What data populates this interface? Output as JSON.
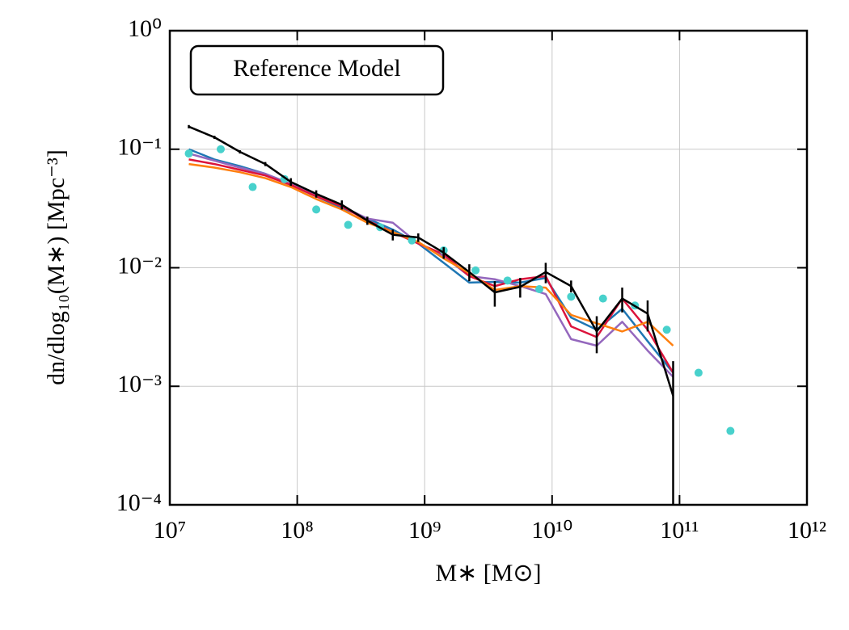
{
  "chart_data": {
    "type": "line",
    "xlabel": "M∗ [M⊙]",
    "ylabel": "dn/dlog₁₀(M∗) [Mpc⁻³]",
    "annotation": "Reference Model",
    "xlog": true,
    "ylog": true,
    "grid": true,
    "xlim": [
      10000000.0,
      1000000000000.0
    ],
    "ylim": [
      0.0001,
      1
    ],
    "xticks": [
      {
        "value": 10000000.0,
        "label": "10⁷"
      },
      {
        "value": 100000000.0,
        "label": "10⁸"
      },
      {
        "value": 1000000000.0,
        "label": "10⁹"
      },
      {
        "value": 10000000000.0,
        "label": "10¹⁰"
      },
      {
        "value": 100000000000.0,
        "label": "10¹¹"
      },
      {
        "value": 1000000000000.0,
        "label": "10¹²"
      }
    ],
    "yticks": [
      {
        "value": 0.0001,
        "label": "10⁻⁴"
      },
      {
        "value": 0.001,
        "label": "10⁻³"
      },
      {
        "value": 0.01,
        "label": "10⁻²"
      },
      {
        "value": 0.1,
        "label": "10⁻¹"
      },
      {
        "value": 1,
        "label": "10⁰"
      }
    ],
    "series": [
      {
        "mode": "line",
        "color": "#1f77b4",
        "x": [
          14100000.0,
          22400000.0,
          35500000.0,
          56200000.0,
          89100000.0,
          141000000.0,
          224000000.0,
          355000000.0,
          562000000.0,
          891000000.0,
          1410000000.0,
          2240000000.0,
          3550000000.0,
          5620000000.0,
          8910000000.0,
          14100000000.0,
          22400000000.0,
          35500000000.0,
          56200000000.0,
          89100000000.0
        ],
        "values": [
          0.1,
          0.082,
          0.072,
          0.062,
          0.05,
          0.04,
          0.032,
          0.026,
          0.021,
          0.016,
          0.011,
          0.0075,
          0.0076,
          0.0075,
          0.0082,
          0.0038,
          0.003,
          0.0045,
          0.0024,
          0.0013
        ]
      },
      {
        "mode": "line",
        "color": "#9467bd",
        "x": [
          14100000.0,
          22400000.0,
          35500000.0,
          56200000.0,
          89100000.0,
          141000000.0,
          224000000.0,
          355000000.0,
          562000000.0,
          891000000.0,
          1410000000.0,
          2240000000.0,
          3550000000.0,
          5620000000.0,
          8910000000.0,
          14100000000.0,
          22400000000.0,
          35500000000.0,
          56200000000.0,
          89100000000.0
        ],
        "values": [
          0.092,
          0.08,
          0.07,
          0.062,
          0.051,
          0.041,
          0.033,
          0.026,
          0.024,
          0.016,
          0.0125,
          0.0085,
          0.008,
          0.007,
          0.006,
          0.0025,
          0.0022,
          0.0035,
          0.002,
          0.0012
        ]
      },
      {
        "mode": "line",
        "color": "#dc143c",
        "x": [
          14100000.0,
          22400000.0,
          35500000.0,
          56200000.0,
          89100000.0,
          141000000.0,
          224000000.0,
          355000000.0,
          562000000.0,
          891000000.0,
          1410000000.0,
          2240000000.0,
          3550000000.0,
          5620000000.0,
          8910000000.0,
          14100000000.0,
          22400000000.0,
          35500000000.0,
          56200000000.0,
          89100000000.0
        ],
        "values": [
          0.082,
          0.075,
          0.067,
          0.06,
          0.05,
          0.04,
          0.033,
          0.025,
          0.02,
          0.016,
          0.013,
          0.0085,
          0.007,
          0.008,
          0.0085,
          0.0032,
          0.0026,
          0.0055,
          0.003,
          0.0013
        ]
      },
      {
        "mode": "line",
        "color": "#ff7f0e",
        "x": [
          14100000.0,
          22400000.0,
          35500000.0,
          56200000.0,
          89100000.0,
          141000000.0,
          224000000.0,
          355000000.0,
          562000000.0,
          891000000.0,
          1410000000.0,
          2240000000.0,
          3550000000.0,
          5620000000.0,
          8910000000.0,
          14100000000.0,
          22400000000.0,
          35500000000.0,
          56200000000.0,
          89100000000.0
        ],
        "values": [
          0.075,
          0.07,
          0.064,
          0.057,
          0.048,
          0.038,
          0.031,
          0.024,
          0.02,
          0.0165,
          0.012,
          0.009,
          0.0065,
          0.007,
          0.0068,
          0.004,
          0.0034,
          0.0029,
          0.0035,
          0.0022
        ]
      },
      {
        "mode": "markers",
        "color": "#48d1cc",
        "x": [
          14100000.0,
          25100000.0,
          44700000.0,
          79400000.0,
          141000000.0,
          251000000.0,
          447000000.0,
          794000000.0,
          1410000000.0,
          2510000000.0,
          4470000000.0,
          7940000000.0,
          14100000000.0,
          25100000000.0,
          44700000000.0,
          79400000000.0,
          141000000000.0,
          251000000000.0
        ],
        "values": [
          0.092,
          0.1,
          0.048,
          0.056,
          0.031,
          0.023,
          0.022,
          0.017,
          0.014,
          0.0095,
          0.0078,
          0.0066,
          0.0057,
          0.0055,
          0.0048,
          0.003,
          0.0013,
          0.00042
        ]
      },
      {
        "mode": "line",
        "color": "#000000",
        "x": [
          14100000.0,
          22400000.0,
          35500000.0,
          56200000.0,
          89100000.0,
          141000000.0,
          224000000.0,
          355000000.0,
          562000000.0,
          891000000.0,
          1410000000.0,
          2240000000.0,
          3550000000.0,
          5620000000.0,
          8910000000.0,
          14100000000.0,
          22400000000.0,
          35500000000.0,
          56200000000.0,
          89100000000.0
        ],
        "values": [
          0.155,
          0.126,
          0.095,
          0.075,
          0.053,
          0.042,
          0.034,
          0.025,
          0.019,
          0.018,
          0.0134,
          0.0092,
          0.0062,
          0.0069,
          0.0092,
          0.007,
          0.0029,
          0.0055,
          0.0041,
          0.00083
        ],
        "errors": [
          0.005,
          0.004,
          0.003,
          0.003,
          0.004,
          0.003,
          0.003,
          0.002,
          0.002,
          0.0015,
          0.0015,
          0.0015,
          0.0015,
          0.0013,
          0.0018,
          0.0008,
          0.001,
          0.0013,
          0.0012,
          0.0008
        ]
      }
    ]
  }
}
